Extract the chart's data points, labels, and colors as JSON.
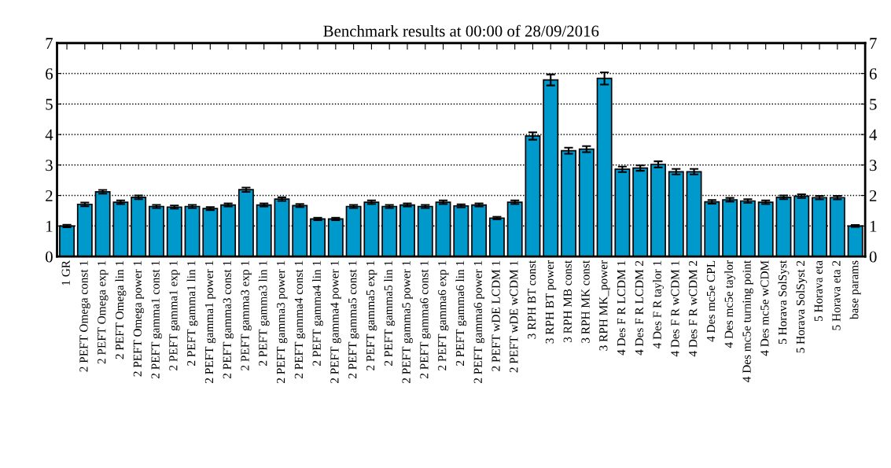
{
  "chart_data": {
    "type": "bar",
    "title": "Benchmark results at 00:00 of 28/09/2016",
    "categories": [
      "1 GR",
      "2 PEFT Omega const 1",
      "2 PEFT Omega exp 1",
      "2 PEFT Omega lin 1",
      "2 PEFT Omega power 1",
      "2 PEFT gamma1 const 1",
      "2 PEFT gamma1 exp 1",
      "2 PEFT gamma1 lin 1",
      "2 PEFT gamma1 power 1",
      "2 PEFT gamma3 const 1",
      "2 PEFT gamma3 exp 1",
      "2 PEFT gamma3 lin 1",
      "2 PEFT gamma3 power 1",
      "2 PEFT gamma4 const 1",
      "2 PEFT gamma4 lin 1",
      "2 PEFT gamma4 power 1",
      "2 PEFT gamma5 const 1",
      "2 PEFT gamma5 exp 1",
      "2 PEFT gamma5 lin 1",
      "2 PEFT gamma5 power 1",
      "2 PEFT gamma6 const 1",
      "2 PEFT gamma6 exp 1",
      "2 PEFT gamma6 lin 1",
      "2 PEFT gamma6 power 1",
      "2 PEFT wDE LCDM 1",
      "2 PEFT wDE wCDM 1",
      "3 RPH BT const",
      "3 RPH BT power",
      "3 RPH MB const",
      "3 RPH MK const",
      "3 RPH MK_power",
      "4 Des F R LCDM 1",
      "4 Des F R LCDM 2",
      "4 Des F R taylor 1",
      "4 Des F R wCDM 1",
      "4 Des F R wCDM 2",
      "4 Des mc5e CPL",
      "4 Des mc5e taylor",
      "4 Des mc5e turning point",
      "4 Des mc5e wCDM",
      "5 Horava SolSyst",
      "5 Horava SolSyst 2",
      "5 Horava eta",
      "5 Horava eta 2",
      "base params"
    ],
    "values": [
      1.0,
      1.71,
      2.12,
      1.78,
      1.94,
      1.64,
      1.62,
      1.64,
      1.57,
      1.69,
      2.19,
      1.69,
      1.88,
      1.67,
      1.23,
      1.23,
      1.64,
      1.78,
      1.64,
      1.69,
      1.64,
      1.78,
      1.66,
      1.69,
      1.26,
      1.78,
      3.95,
      5.79,
      3.47,
      3.52,
      5.84,
      2.86,
      2.9,
      3.02,
      2.78,
      2.78,
      1.79,
      1.86,
      1.82,
      1.78,
      1.94,
      1.98,
      1.93,
      1.93,
      1.0
    ],
    "errors": [
      0.04,
      0.06,
      0.06,
      0.06,
      0.06,
      0.05,
      0.05,
      0.05,
      0.05,
      0.05,
      0.07,
      0.05,
      0.06,
      0.05,
      0.04,
      0.04,
      0.05,
      0.06,
      0.05,
      0.05,
      0.05,
      0.06,
      0.05,
      0.05,
      0.04,
      0.06,
      0.12,
      0.18,
      0.1,
      0.1,
      0.2,
      0.09,
      0.09,
      0.1,
      0.09,
      0.09,
      0.06,
      0.06,
      0.06,
      0.06,
      0.06,
      0.06,
      0.06,
      0.06,
      0.03
    ],
    "color": "#0099cc",
    "ylim": [
      0,
      7
    ],
    "yticks": [
      0,
      1,
      2,
      3,
      4,
      5,
      6,
      7
    ],
    "y2lim": [
      0,
      7
    ],
    "y2ticks": [
      0,
      1,
      2,
      3,
      4,
      5,
      6,
      7
    ],
    "grid": "y",
    "legend": false
  }
}
